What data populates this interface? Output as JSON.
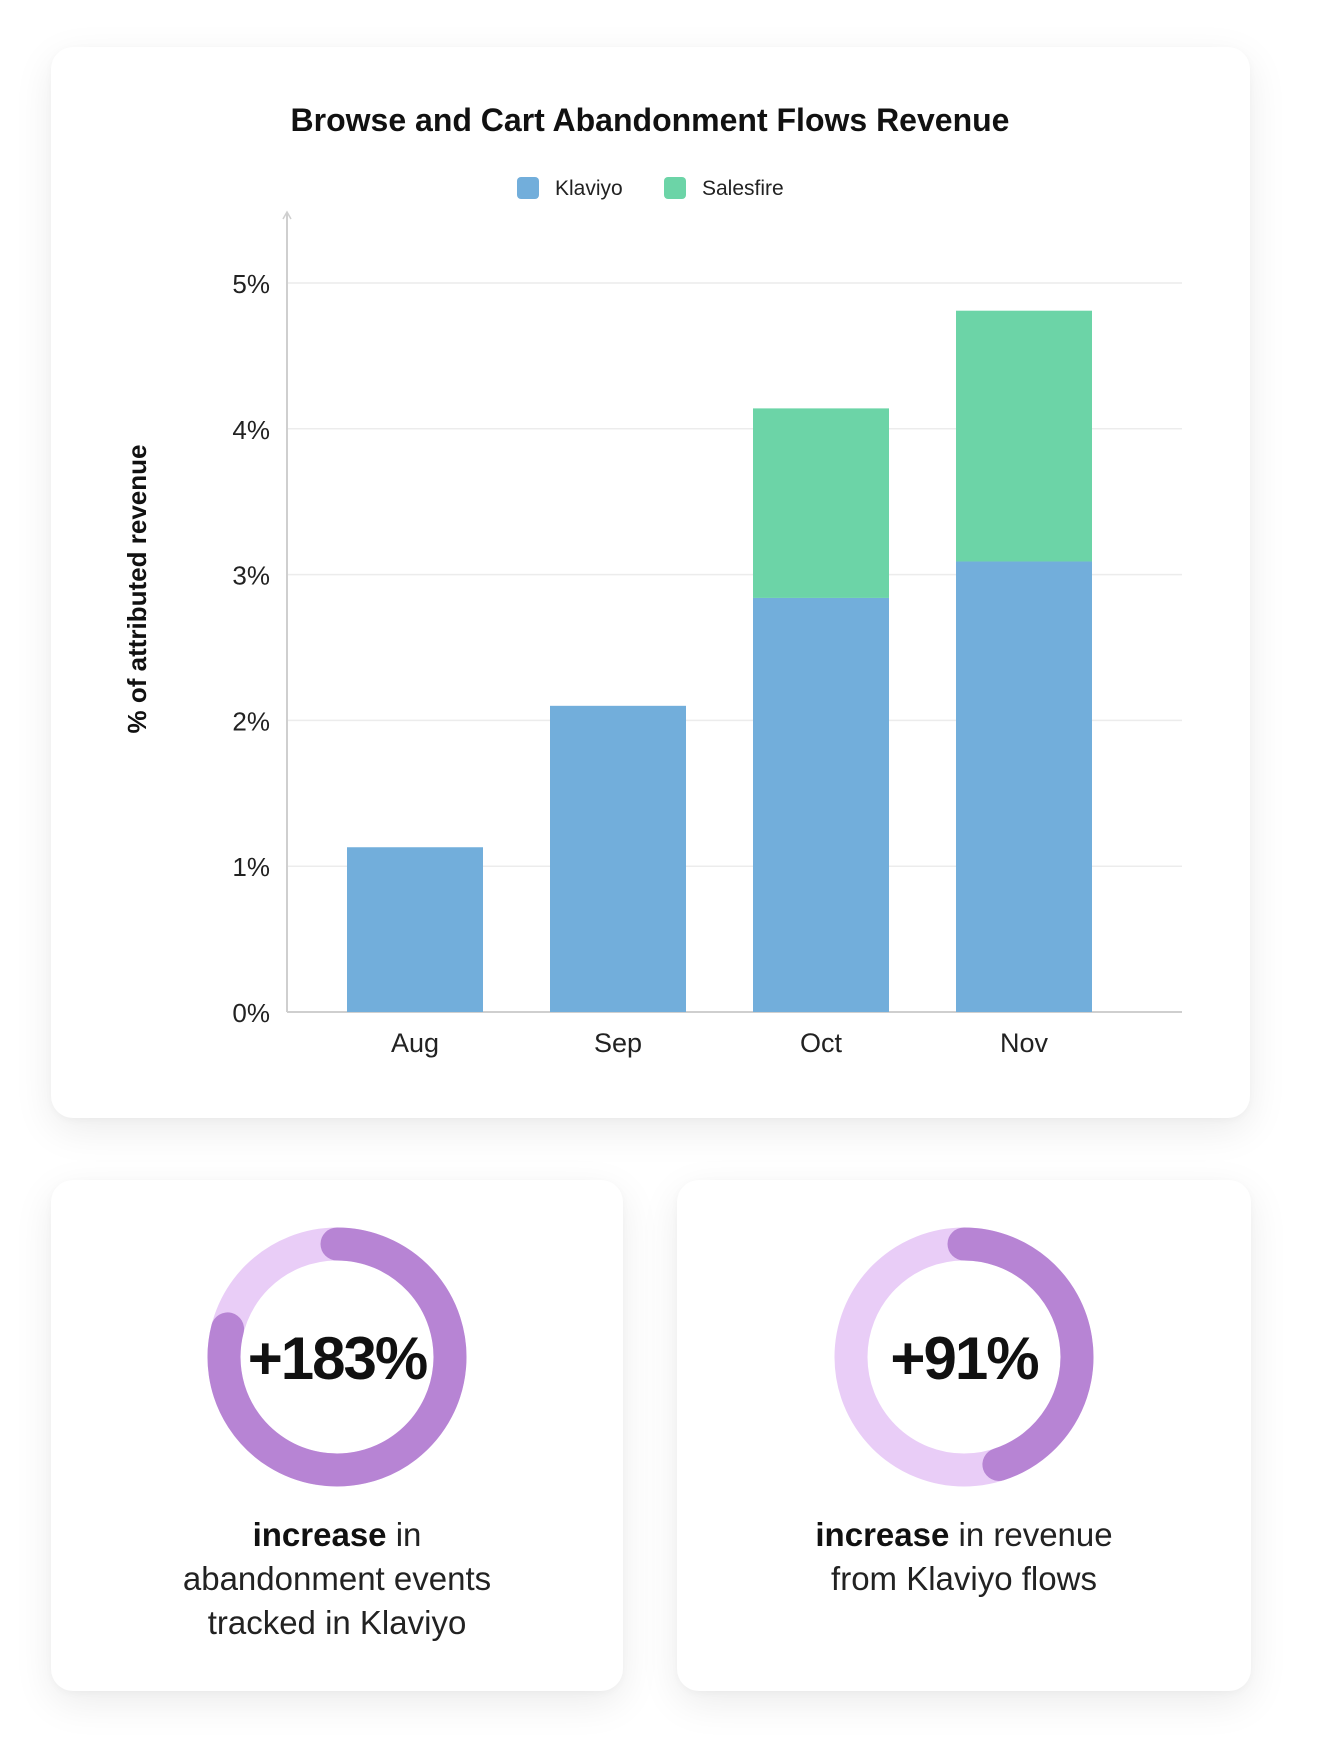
{
  "chart_data": {
    "type": "bar",
    "stacked": true,
    "title": "Browse and Cart Abandonment Flows Revenue",
    "xlabel": "",
    "ylabel": "% of attributed revenue",
    "categories": [
      "Aug",
      "Sep",
      "Oct",
      "Nov"
    ],
    "series": [
      {
        "name": "Klaviyo",
        "color": "#72aedb",
        "values": [
          1.13,
          2.1,
          2.84,
          3.09
        ]
      },
      {
        "name": "Salesfire",
        "color": "#6cd4a7",
        "values": [
          0,
          0,
          1.3,
          1.72
        ]
      }
    ],
    "ylim": [
      0,
      5
    ],
    "yticks": [
      0,
      1,
      2,
      3,
      4,
      5
    ],
    "ytick_labels": [
      "0%",
      "1%",
      "2%",
      "3%",
      "4%",
      "5%"
    ],
    "grid": true,
    "legend": "top-center"
  },
  "stats": [
    {
      "value": "+183%",
      "bold": "increase",
      "rest": " in",
      "lines": [
        "abandonment events",
        "tracked in Klaviyo"
      ],
      "ring_fill": 0.79
    },
    {
      "value": "+91%",
      "bold": "increase",
      "rest": " in revenue",
      "lines": [
        "from Klaviyo flows"
      ],
      "ring_fill": 0.45
    }
  ],
  "colors": {
    "ring_dark": "#b784d4",
    "ring_light": "#e9cdf7",
    "grid": "#ececec",
    "axis": "#cfcfcf"
  }
}
